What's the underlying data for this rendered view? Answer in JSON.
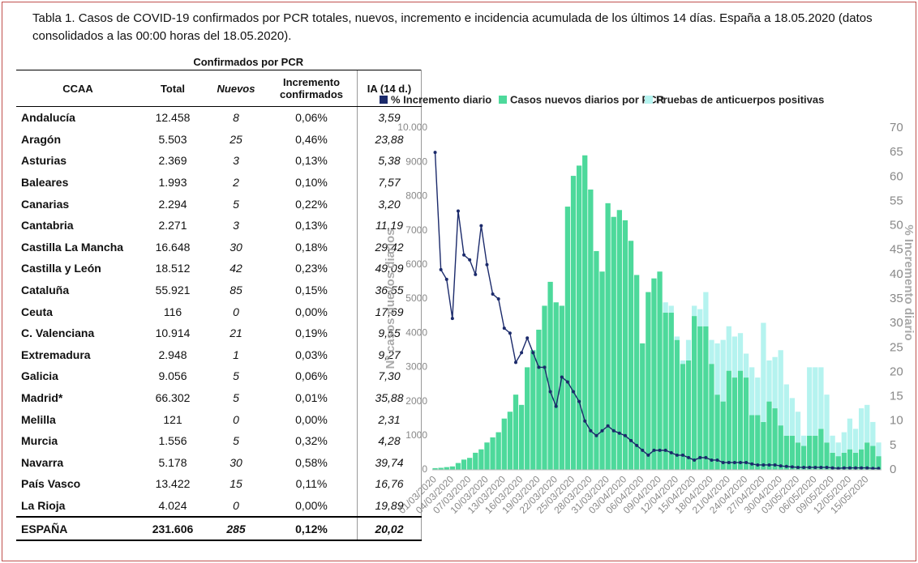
{
  "title": "Tabla 1. Casos de COVID-19 confirmados por PCR totales, nuevos, incremento e incidencia acumulada de los últimos 14 días. España a 18.05.2020 (datos consolidados a las 00:00 horas del 18.05.2020).",
  "table": {
    "group_header": "Confirmados por PCR",
    "columns": [
      "CCAA",
      "Total",
      "Nuevos",
      "Incremento confirmados",
      "IA (14 d.)"
    ],
    "rows": [
      [
        "Andalucía",
        "12.458",
        "8",
        "0,06%",
        "3,59"
      ],
      [
        "Aragón",
        "5.503",
        "25",
        "0,46%",
        "23,88"
      ],
      [
        "Asturias",
        "2.369",
        "3",
        "0,13%",
        "5,38"
      ],
      [
        "Baleares",
        "1.993",
        "2",
        "0,10%",
        "7,57"
      ],
      [
        "Canarias",
        "2.294",
        "5",
        "0,22%",
        "3,20"
      ],
      [
        "Cantabria",
        "2.271",
        "3",
        "0,13%",
        "11,19"
      ],
      [
        "Castilla La Mancha",
        "16.648",
        "30",
        "0,18%",
        "29,42"
      ],
      [
        "Castilla y León",
        "18.512",
        "42",
        "0,23%",
        "49,09"
      ],
      [
        "Cataluña",
        "55.921",
        "85",
        "0,15%",
        "36,55"
      ],
      [
        "Ceuta",
        "116",
        "0",
        "0,00%",
        "17,69"
      ],
      [
        "C. Valenciana",
        "10.914",
        "21",
        "0,19%",
        "9,55"
      ],
      [
        "Extremadura",
        "2.948",
        "1",
        "0,03%",
        "9,27"
      ],
      [
        "Galicia",
        "9.056",
        "5",
        "0,06%",
        "7,30"
      ],
      [
        "Madrid*",
        "66.302",
        "5",
        "0,01%",
        "35,88"
      ],
      [
        "Melilla",
        "121",
        "0",
        "0,00%",
        "2,31"
      ],
      [
        "Murcia",
        "1.556",
        "5",
        "0,32%",
        "4,28"
      ],
      [
        "Navarra",
        "5.178",
        "30",
        "0,58%",
        "39,74"
      ],
      [
        "País Vasco",
        "13.422",
        "15",
        "0,11%",
        "16,76"
      ],
      [
        "La Rioja",
        "4.024",
        "0",
        "0,00%",
        "19,89"
      ]
    ],
    "total": [
      "ESPAÑA",
      "231.606",
      "285",
      "0,12%",
      "20,02"
    ]
  },
  "chart_data": {
    "type": "bar",
    "stacked": true,
    "y_label": "Nº casos nuevos diarios",
    "y2_label": "% Incremento diario",
    "categories": [
      "01/03/2020",
      null,
      null,
      "04/03/2020",
      null,
      null,
      "07/03/2020",
      null,
      null,
      "10/03/2020",
      null,
      null,
      "13/03/2020",
      null,
      null,
      "16/03/2020",
      null,
      null,
      "19/03/2020",
      null,
      null,
      "22/03/2020",
      null,
      null,
      "25/03/2020",
      null,
      null,
      "28/03/2020",
      null,
      null,
      "31/03/2020",
      null,
      null,
      "03/04/2020",
      null,
      null,
      "06/04/2020",
      null,
      null,
      "09/04/2020",
      null,
      null,
      "12/04/2020",
      null,
      null,
      "15/04/2020",
      null,
      null,
      "18/04/2020",
      null,
      null,
      "21/04/2020",
      null,
      null,
      "24/04/2020",
      null,
      null,
      "27/04/2020",
      null,
      null,
      "30/04/2020",
      null,
      null,
      "03/05/2020",
      null,
      null,
      "06/05/2020",
      null,
      null,
      "09/05/2020",
      null,
      null,
      "12/05/2020",
      null,
      null,
      "15/05/2020",
      null,
      null
    ],
    "series": [
      {
        "name": "% Incremento diario",
        "type": "line",
        "axis": "y2",
        "color": "#1b2a6b",
        "values": [
          65,
          41,
          39,
          31,
          53,
          44,
          43,
          40,
          50,
          42,
          36,
          35,
          29,
          28,
          22,
          24,
          27,
          24,
          21,
          21,
          16,
          13,
          19,
          18,
          16,
          14,
          10,
          8,
          7,
          8,
          9,
          8,
          7.5,
          7,
          6,
          5,
          4,
          3,
          4,
          4,
          4,
          3.5,
          3,
          3,
          2.5,
          2,
          2.5,
          2.5,
          2,
          2,
          1.5,
          1.5,
          1.5,
          1.5,
          1.5,
          1.2,
          1,
          1,
          1,
          1,
          0.8,
          0.7,
          0.6,
          0.5,
          0.5,
          0.5,
          0.5,
          0.5,
          0.5,
          0.4,
          0.3,
          0.4,
          0.4,
          0.4,
          0.4,
          0.4,
          0.3,
          0.3
        ]
      },
      {
        "name": "Casos nuevos diarios por PCR",
        "type": "bar",
        "color": "#4dd99b",
        "values": [
          50,
          60,
          80,
          100,
          200,
          300,
          350,
          500,
          600,
          800,
          950,
          1100,
          1500,
          1700,
          2200,
          1900,
          3000,
          3500,
          4100,
          4800,
          5500,
          4900,
          4800,
          7700,
          8600,
          8900,
          9200,
          8200,
          6400,
          5800,
          7800,
          7400,
          7600,
          7300,
          6700,
          5700,
          3700,
          5200,
          5600,
          5800,
          4600,
          4600,
          3800,
          3100,
          3200,
          4500,
          4200,
          4200,
          3100,
          2200,
          2000,
          2900,
          2700,
          2900,
          2700,
          1600,
          1600,
          1400,
          2000,
          1800,
          1300,
          1000,
          1000,
          800,
          700,
          1000,
          1000,
          1200,
          800,
          500,
          400,
          500,
          600,
          500,
          600,
          800,
          700,
          400
        ]
      },
      {
        "name": "Pruebas de anticuerpos positivas",
        "type": "bar",
        "color": "#b5f3ef",
        "values": [
          0,
          0,
          0,
          0,
          0,
          0,
          0,
          0,
          0,
          0,
          0,
          0,
          0,
          0,
          0,
          0,
          0,
          0,
          0,
          0,
          0,
          0,
          0,
          0,
          0,
          0,
          0,
          0,
          0,
          0,
          0,
          0,
          0,
          0,
          0,
          0,
          0,
          0,
          0,
          0,
          300,
          200,
          100,
          100,
          600,
          300,
          500,
          1000,
          700,
          1500,
          1800,
          1300,
          1200,
          1100,
          700,
          1400,
          1100,
          2900,
          1200,
          1500,
          2200,
          1500,
          1100,
          900,
          300,
          2000,
          2000,
          1800,
          1400,
          500,
          400,
          600,
          900,
          700,
          1200,
          1100,
          700,
          400
        ]
      }
    ],
    "ylim": [
      0,
      10000
    ],
    "yticks": [
      0,
      1000,
      2000,
      3000,
      4000,
      5000,
      6000,
      7000,
      8000,
      9000,
      {
        "value": 10000,
        "label": "10.000"
      }
    ],
    "y2lim": [
      0,
      70
    ],
    "y2ticks": [
      0,
      5,
      10,
      15,
      20,
      25,
      30,
      35,
      40,
      45,
      50,
      55,
      60,
      65,
      70
    ],
    "grid": false
  }
}
